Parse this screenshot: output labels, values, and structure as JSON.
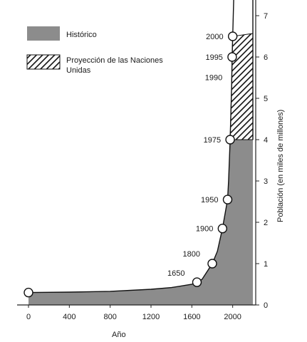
{
  "chart_data": {
    "type": "area",
    "xlabel": "Año",
    "ylabel": "Población (en miles de millones)",
    "xlim": [
      0,
      2100
    ],
    "ylim": [
      0,
      7
    ],
    "x_ticks": [
      "0",
      "400",
      "800",
      "1200",
      "1600",
      "2000"
    ],
    "y_ticks": [
      "0",
      "1",
      "2",
      "3",
      "4",
      "5",
      "6",
      "7"
    ],
    "legend": {
      "placement": "top-left",
      "entries": [
        {
          "label": "Histórico",
          "style": "solid-gray"
        },
        {
          "label": "Proyección de las Naciones Unidas",
          "style": "hatched"
        }
      ]
    },
    "series": [
      {
        "name": "Histórico",
        "x": [
          0,
          400,
          800,
          1200,
          1400,
          1600,
          1650,
          1700,
          1800,
          1850,
          1900,
          1950,
          1960,
          1975
        ],
        "values": [
          0.3,
          0.31,
          0.33,
          0.38,
          0.42,
          0.5,
          0.55,
          0.62,
          1.0,
          1.3,
          1.85,
          2.55,
          3.0,
          4.0
        ]
      },
      {
        "name": "Proyección de las Naciones Unidas",
        "x": [
          1975,
          1990,
          1995,
          2000
        ],
        "values": [
          4.0,
          5.3,
          6.0,
          6.5
        ]
      }
    ],
    "markers": [
      {
        "x": 0,
        "y": 0.3,
        "label": ""
      },
      {
        "x": 1650,
        "y": 0.55,
        "label": "1650"
      },
      {
        "x": 1800,
        "y": 1.0,
        "label": "1800"
      },
      {
        "x": 1900,
        "y": 1.85,
        "label": "1900"
      },
      {
        "x": 1950,
        "y": 2.55,
        "label": "1950"
      },
      {
        "x": 1975,
        "y": 4.0,
        "label": "1975"
      },
      {
        "x": 1995,
        "y": 6.0,
        "label": "1995"
      },
      {
        "x": 2000,
        "y": 6.5,
        "label": "2000"
      }
    ],
    "annotations": [
      {
        "x": 1990,
        "y": 5.3,
        "label": "1990"
      }
    ],
    "colors": {
      "historic": "#8c8c8c",
      "projection_hatch": "#111111",
      "axis": "#222222"
    }
  }
}
